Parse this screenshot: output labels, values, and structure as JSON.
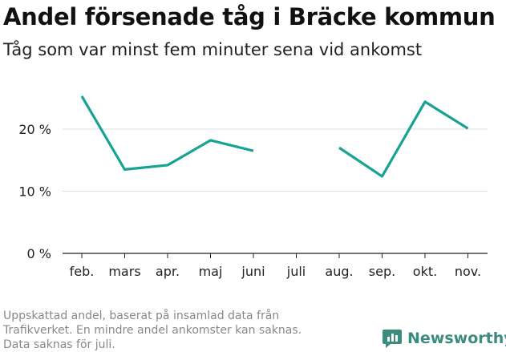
{
  "header": {
    "title": "Andel försenade tåg i Bräcke kommun",
    "subtitle": "Tåg som var minst fem minuter sena vid ankomst"
  },
  "footnote": {
    "lines": [
      "Uppskattad andel, baserat på insamlad data från",
      "Trafikverket. En mindre andel ankomster kan saknas.",
      "Data saknas för juli."
    ]
  },
  "brand": {
    "name": "Newsworthy",
    "icon": "newsworthy-logo-icon",
    "color": "#3a8c7e"
  },
  "chart_data": {
    "type": "line",
    "categories": [
      "feb.",
      "mars",
      "apr.",
      "maj",
      "juni",
      "juli",
      "aug.",
      "sep.",
      "okt.",
      "nov."
    ],
    "series": [
      {
        "values": [
          25.3,
          13.5,
          14.2,
          18.2,
          16.5,
          null,
          17.0,
          12.4,
          24.4,
          20.1
        ],
        "color": "#16a394"
      }
    ],
    "y_ticks": [
      0,
      10,
      20
    ],
    "y_tick_labels": [
      "0 %",
      "10 %",
      "20 %"
    ],
    "ylim": [
      0,
      26
    ],
    "grid": true,
    "xlabel": "",
    "ylabel": ""
  }
}
